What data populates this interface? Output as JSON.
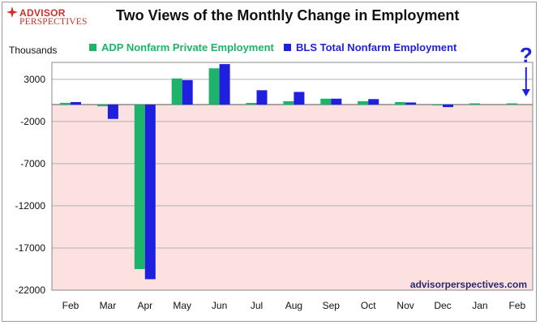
{
  "brand": {
    "line1": "ADVISOR",
    "line2": "PERSPECTIVES"
  },
  "colors": {
    "adp": "#1db36a",
    "bls": "#1f1fe0",
    "negative_bg": "#fde1e1",
    "brand": "#c8312c",
    "grid": "#b0b0b0"
  },
  "chart_data": {
    "type": "bar",
    "title": "Two Views of the Monthly Change in Employment",
    "ylabel": "Thousands",
    "xlabel": "",
    "ylim": [
      -22000,
      5000
    ],
    "yticks": [
      3000,
      -2000,
      -7000,
      -12000,
      -17000,
      -22000
    ],
    "grid": true,
    "negative_region_shaded": true,
    "categories": [
      "Feb",
      "Mar",
      "Apr",
      "May",
      "Jun",
      "Jul",
      "Aug",
      "Sep",
      "Oct",
      "Nov",
      "Dec",
      "Jan",
      "Feb"
    ],
    "series": [
      {
        "name": "ADP Nonfarm Private Employment",
        "color": "#1db36a",
        "values": [
          200,
          -200,
          -19500,
          3100,
          4300,
          200,
          400,
          700,
          400,
          300,
          -100,
          150,
          150
        ]
      },
      {
        "name": "BLS Total Nonfarm Employment",
        "color": "#1f1fe0",
        "values": [
          300,
          -1700,
          -20700,
          2900,
          4800,
          1700,
          1500,
          700,
          650,
          250,
          -300,
          null,
          null
        ]
      }
    ],
    "annotations": [
      {
        "text": "?",
        "category_index": 12,
        "marker": "down-arrow"
      }
    ],
    "watermark": "advisorperspectives.com"
  }
}
